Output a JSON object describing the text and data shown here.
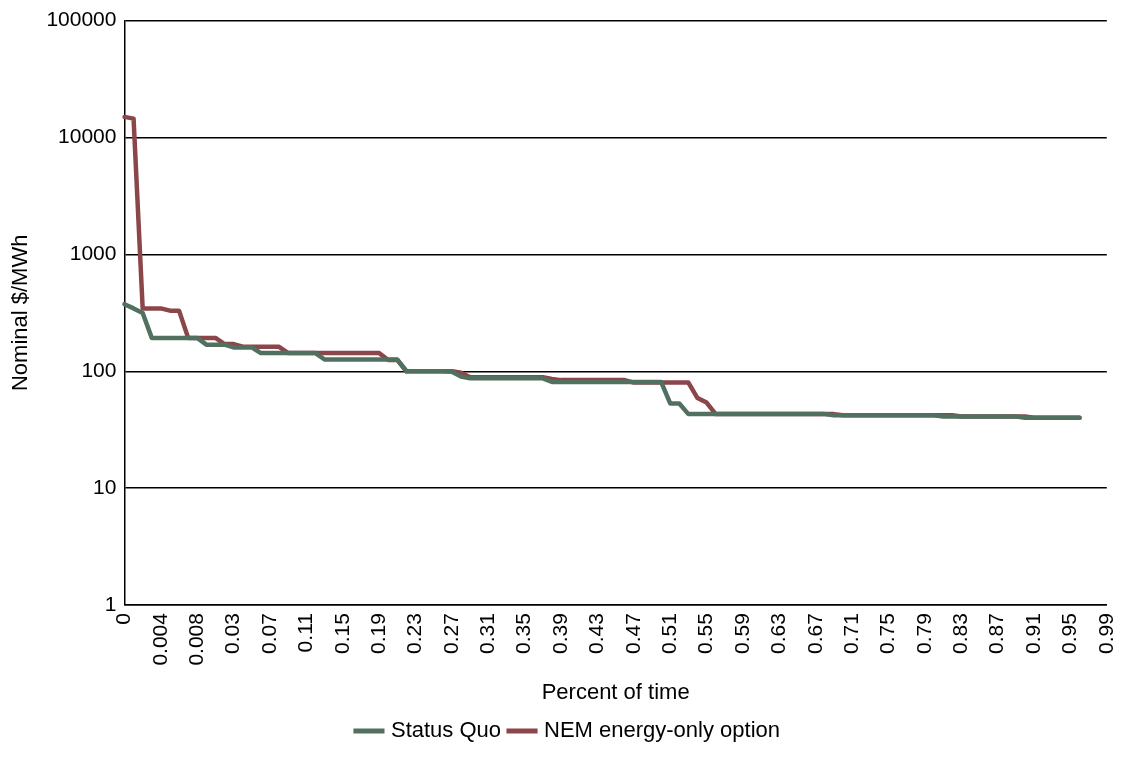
{
  "chart_data": {
    "type": "line",
    "xlabel": "Percent of time",
    "ylabel": "Nominal $/MWh",
    "categories": [
      "0",
      null,
      null,
      null,
      "0.004",
      null,
      null,
      null,
      "0.008",
      null,
      null,
      null,
      "0.03",
      null,
      null,
      null,
      "0.07",
      null,
      null,
      null,
      "0.11",
      null,
      null,
      null,
      "0.15",
      null,
      null,
      null,
      "0.19",
      null,
      null,
      null,
      "0.23",
      null,
      null,
      null,
      "0.27",
      null,
      null,
      null,
      "0.31",
      null,
      null,
      null,
      "0.35",
      null,
      null,
      null,
      "0.39",
      null,
      null,
      null,
      "0.43",
      null,
      null,
      null,
      "0.47",
      null,
      null,
      null,
      "0.51",
      null,
      null,
      null,
      "0.55",
      null,
      null,
      null,
      "0.59",
      null,
      null,
      null,
      "0.63",
      null,
      null,
      null,
      "0.67",
      null,
      null,
      null,
      "0.71",
      null,
      null,
      null,
      "0.75",
      null,
      null,
      null,
      "0.79",
      null,
      null,
      null,
      "0.83",
      null,
      null,
      null,
      "0.87",
      null,
      null,
      null,
      "0.91",
      null,
      null,
      null,
      "0.95",
      null,
      null,
      null,
      "0.99"
    ],
    "series": [
      {
        "name": "Status Quo",
        "color": "#52705f",
        "values": [
          375,
          345,
          315,
          193,
          193,
          193,
          193,
          193,
          193,
          169,
          169,
          169,
          160,
          160,
          160,
          143,
          143,
          143,
          143,
          143,
          143,
          143,
          126,
          126,
          126,
          126,
          126,
          126,
          126,
          126,
          126,
          100,
          100,
          100,
          100,
          100,
          99,
          90,
          87,
          87,
          87,
          87,
          87,
          87,
          87,
          87,
          87,
          81,
          81,
          81,
          81,
          81,
          81,
          81,
          81,
          81,
          81,
          81,
          81,
          81,
          53,
          53,
          43,
          43,
          43,
          43,
          43,
          43,
          43,
          43,
          43,
          43,
          43,
          43,
          43,
          43,
          43,
          43,
          42,
          42,
          42,
          42,
          42,
          42,
          42,
          42,
          42,
          42,
          42,
          42,
          41,
          41,
          41,
          41,
          41,
          41,
          41,
          41,
          41,
          40,
          40,
          40,
          40,
          40,
          40,
          40,
          null,
          null,
          null
        ]
      },
      {
        "name": "NEM energy-only option",
        "color": "#8b4649",
        "values": [
          15000,
          14500,
          345,
          345,
          345,
          330,
          330,
          193,
          193,
          193,
          193,
          171,
          171,
          162,
          162,
          162,
          162,
          162,
          143,
          143,
          143,
          143,
          143,
          143,
          143,
          143,
          143,
          143,
          143,
          125,
          125,
          100,
          100,
          100,
          100,
          100,
          100,
          97,
          89,
          89,
          89,
          89,
          89,
          89,
          89,
          89,
          89,
          86,
          84,
          84,
          84,
          84,
          84,
          84,
          84,
          84,
          80,
          80,
          80,
          80,
          80,
          80,
          80,
          59,
          54,
          43,
          43,
          43,
          43,
          43,
          43,
          43,
          43,
          43,
          43,
          43,
          43,
          43,
          43,
          42,
          42,
          42,
          42,
          42,
          42,
          42,
          42,
          42,
          42,
          42,
          42,
          42,
          41,
          41,
          41,
          41,
          41,
          41,
          41,
          41,
          40,
          40,
          40,
          40,
          40,
          40,
          null,
          null,
          null
        ]
      }
    ],
    "log": "y",
    "ylim": [
      1,
      100000
    ],
    "yticks": [
      1,
      10,
      100,
      1000,
      10000,
      100000
    ],
    "grid": "y",
    "legend": "bottom"
  }
}
